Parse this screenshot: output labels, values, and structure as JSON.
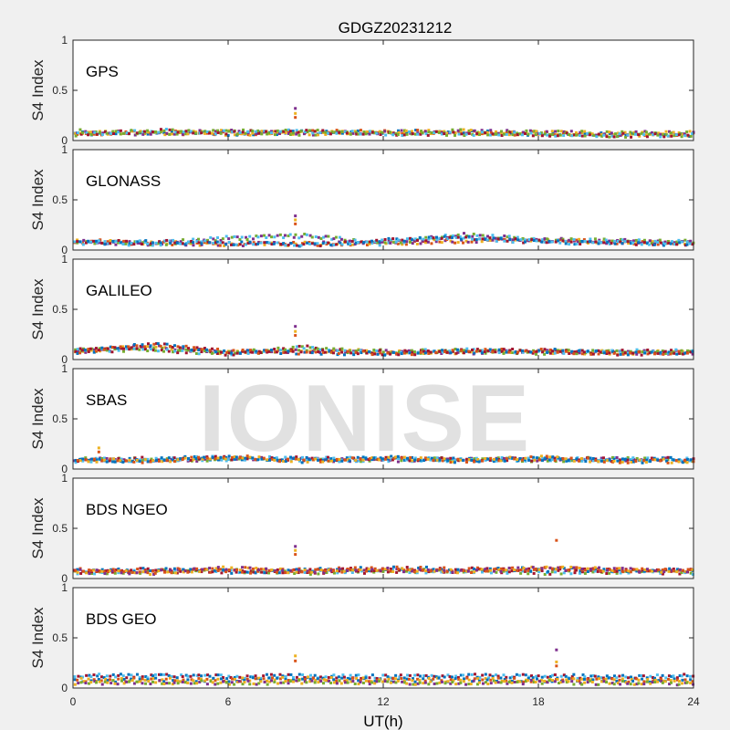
{
  "title": "GDGZ20231212",
  "watermark": "IONISE",
  "chart_data": {
    "type": "scatter",
    "title": "GDGZ20231212",
    "xlabel": "UT(h)",
    "ylabel": "S4 Index",
    "xlim": [
      0,
      24
    ],
    "ylim": [
      0,
      1
    ],
    "xticks": [
      0,
      6,
      12,
      18,
      24
    ],
    "yticks": [
      0,
      0.5,
      1
    ],
    "ytick_labels": [
      "0",
      "0.5",
      "1"
    ],
    "grid": false,
    "series_colors": [
      "#0072BD",
      "#D95319",
      "#EDB120",
      "#7E2F8E",
      "#77AC30",
      "#4DBEEE",
      "#A2142F"
    ],
    "panels": [
      {
        "label": "GPS",
        "series": [
          {
            "x": [
              0,
              3,
              6,
              9,
              12,
              15,
              18,
              21,
              24
            ],
            "values": [
              0.07,
              0.08,
              0.07,
              0.08,
              0.09,
              0.08,
              0.07,
              0.06,
              0.06
            ]
          },
          {
            "x": [
              0,
              3,
              6,
              9,
              12,
              15,
              18,
              21,
              24
            ],
            "values": [
              0.09,
              0.07,
              0.09,
              0.07,
              0.08,
              0.09,
              0.08,
              0.07,
              0.08
            ]
          },
          {
            "x": [
              0,
              3,
              6,
              9,
              12,
              15,
              18,
              21,
              24
            ],
            "values": [
              0.06,
              0.1,
              0.08,
              0.09,
              0.07,
              0.07,
              0.06,
              0.05,
              0.06
            ]
          }
        ],
        "spikes": [
          {
            "x": 8.6,
            "values": [
              0.23,
              0.27,
              0.32
            ]
          }
        ]
      },
      {
        "label": "GLONASS",
        "series": [
          {
            "x": [
              0,
              3,
              6,
              9,
              12,
              15,
              18,
              21,
              24
            ],
            "values": [
              0.09,
              0.07,
              0.06,
              0.06,
              0.07,
              0.09,
              0.1,
              0.08,
              0.07
            ]
          },
          {
            "x": [
              0,
              3,
              6,
              9,
              12,
              15,
              18,
              21,
              24
            ],
            "values": [
              0.08,
              0.06,
              0.12,
              0.14,
              0.06,
              0.15,
              0.1,
              0.09,
              0.08
            ]
          },
          {
            "x": [
              0,
              3,
              6,
              9,
              12,
              15,
              18,
              21,
              24
            ],
            "values": [
              0.07,
              0.08,
              0.07,
              0.05,
              0.1,
              0.12,
              0.08,
              0.07,
              0.06
            ]
          }
        ],
        "spikes": [
          {
            "x": 8.6,
            "values": [
              0.26,
              0.3,
              0.34
            ]
          }
        ]
      },
      {
        "label": "GALILEO",
        "series": [
          {
            "x": [
              0,
              3,
              6,
              9,
              12,
              15,
              18,
              21,
              24
            ],
            "values": [
              0.08,
              0.13,
              0.07,
              0.09,
              0.08,
              0.07,
              0.08,
              0.07,
              0.07
            ]
          },
          {
            "x": [
              0,
              3,
              6,
              9,
              12,
              15,
              18,
              21,
              24
            ],
            "values": [
              0.09,
              0.1,
              0.06,
              0.12,
              0.07,
              0.09,
              0.07,
              0.08,
              0.08
            ]
          },
          {
            "x": [
              0,
              3,
              6,
              9,
              12,
              15,
              18,
              21,
              24
            ],
            "values": [
              0.07,
              0.15,
              0.08,
              0.07,
              0.06,
              0.08,
              0.09,
              0.06,
              0.07
            ]
          }
        ],
        "spikes": [
          {
            "x": 8.6,
            "values": [
              0.24,
              0.28,
              0.33
            ]
          }
        ]
      },
      {
        "label": "SBAS",
        "series": [
          {
            "x": [
              0,
              3,
              6,
              9,
              12,
              15,
              18,
              21,
              24
            ],
            "values": [
              0.1,
              0.09,
              0.1,
              0.09,
              0.09,
              0.1,
              0.09,
              0.1,
              0.09
            ]
          },
          {
            "x": [
              0,
              3,
              6,
              9,
              12,
              15,
              18,
              21,
              24
            ],
            "values": [
              0.08,
              0.1,
              0.11,
              0.1,
              0.1,
              0.09,
              0.1,
              0.09,
              0.1
            ]
          },
          {
            "x": [
              0,
              3,
              6,
              9,
              12,
              15,
              18,
              21,
              24
            ],
            "values": [
              0.09,
              0.08,
              0.12,
              0.08,
              0.11,
              0.08,
              0.11,
              0.08,
              0.08
            ]
          }
        ],
        "spikes": [
          {
            "x": 1.0,
            "values": [
              0.17,
              0.21
            ]
          }
        ]
      },
      {
        "label": "BDS NGEO",
        "series": [
          {
            "x": [
              0,
              3,
              6,
              9,
              12,
              15,
              18,
              21,
              24
            ],
            "values": [
              0.06,
              0.07,
              0.08,
              0.06,
              0.07,
              0.08,
              0.06,
              0.07,
              0.06
            ]
          },
          {
            "x": [
              0,
              3,
              6,
              9,
              12,
              15,
              18,
              21,
              24
            ],
            "values": [
              0.08,
              0.09,
              0.07,
              0.08,
              0.1,
              0.09,
              0.09,
              0.08,
              0.08
            ]
          },
          {
            "x": [
              0,
              3,
              6,
              9,
              12,
              15,
              18,
              21,
              24
            ],
            "values": [
              0.07,
              0.06,
              0.1,
              0.07,
              0.09,
              0.07,
              0.1,
              0.09,
              0.07
            ]
          }
        ],
        "spikes": [
          {
            "x": 8.6,
            "values": [
              0.24,
              0.28,
              0.32
            ]
          },
          {
            "x": 18.7,
            "values": [
              0.38
            ]
          }
        ]
      },
      {
        "label": "BDS GEO",
        "series": [
          {
            "x": [
              0,
              3,
              6,
              9,
              12,
              15,
              18,
              21,
              24
            ],
            "values": [
              0.12,
              0.12,
              0.11,
              0.12,
              0.11,
              0.12,
              0.12,
              0.11,
              0.12
            ]
          },
          {
            "x": [
              0,
              3,
              6,
              9,
              12,
              15,
              18,
              21,
              24
            ],
            "values": [
              0.08,
              0.08,
              0.08,
              0.09,
              0.08,
              0.08,
              0.08,
              0.08,
              0.08
            ]
          },
          {
            "x": [
              0,
              3,
              6,
              9,
              12,
              15,
              18,
              21,
              24
            ],
            "values": [
              0.05,
              0.06,
              0.05,
              0.06,
              0.05,
              0.05,
              0.06,
              0.05,
              0.05
            ]
          }
        ],
        "spikes": [
          {
            "x": 8.6,
            "values": [
              0.27,
              0.32
            ]
          },
          {
            "x": 18.7,
            "values": [
              0.22,
              0.26,
              0.38
            ]
          }
        ]
      }
    ]
  }
}
